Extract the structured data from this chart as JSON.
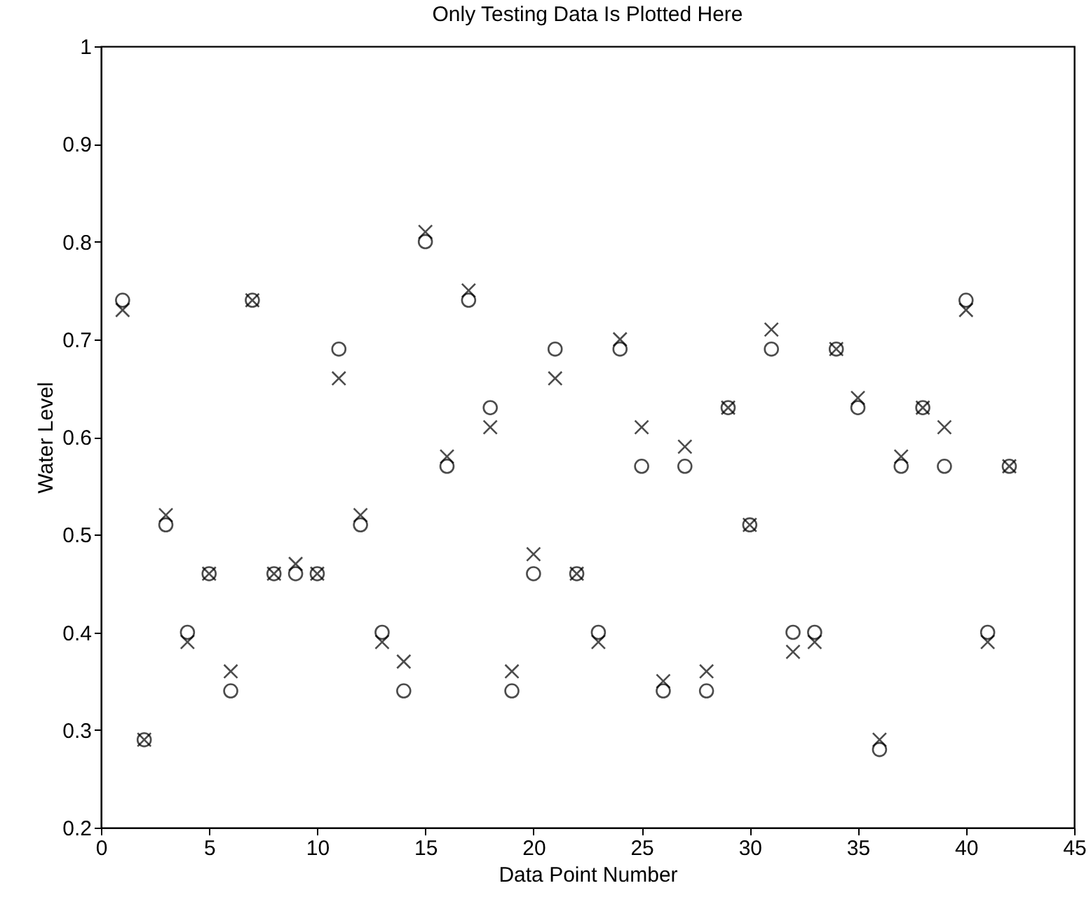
{
  "chart_data": {
    "type": "scatter",
    "title": "Only Testing Data Is Plotted Here",
    "xlabel": "Data Point Number",
    "ylabel": "Water Level",
    "x": [
      1,
      2,
      3,
      4,
      5,
      6,
      7,
      8,
      9,
      10,
      11,
      12,
      13,
      14,
      15,
      16,
      17,
      18,
      19,
      20,
      21,
      22,
      23,
      24,
      25,
      26,
      27,
      28,
      29,
      30,
      31,
      32,
      33,
      34,
      35,
      36,
      37,
      38,
      39,
      40,
      41,
      42
    ],
    "series": [
      {
        "color": "#000000",
        "marker": "circle",
        "values": [
          0.74,
          0.29,
          0.51,
          0.4,
          0.46,
          0.34,
          0.74,
          0.46,
          0.46,
          0.46,
          0.69,
          0.51,
          0.4,
          0.34,
          0.8,
          0.57,
          0.74,
          0.63,
          0.34,
          0.46,
          0.69,
          0.46,
          0.4,
          0.69,
          0.57,
          0.34,
          0.57,
          0.34,
          0.63,
          0.51,
          0.69,
          0.4,
          0.4,
          0.69,
          0.63,
          0.28,
          0.57,
          0.63,
          0.57,
          0.74,
          0.4,
          0.57
        ]
      },
      {
        "color": "#000000",
        "marker": "cross",
        "values": [
          0.73,
          0.29,
          0.52,
          0.39,
          0.46,
          0.36,
          0.74,
          0.46,
          0.47,
          0.46,
          0.66,
          0.52,
          0.39,
          0.37,
          0.81,
          0.58,
          0.75,
          0.61,
          0.36,
          0.48,
          0.66,
          0.46,
          0.39,
          0.7,
          0.61,
          0.35,
          0.59,
          0.36,
          0.63,
          0.51,
          0.71,
          0.38,
          0.39,
          0.69,
          0.64,
          0.29,
          0.58,
          0.63,
          0.61,
          0.73,
          0.39,
          0.57
        ]
      }
    ],
    "xlim": [
      0,
      45
    ],
    "xticks": [
      0,
      5,
      10,
      15,
      20,
      25,
      30,
      35,
      40,
      45
    ],
    "ylim": [
      0.2,
      1
    ],
    "yticks": [
      0.2,
      0.3,
      0.4,
      0.5,
      0.6,
      0.7,
      0.8,
      0.9,
      1
    ],
    "grid": false
  }
}
